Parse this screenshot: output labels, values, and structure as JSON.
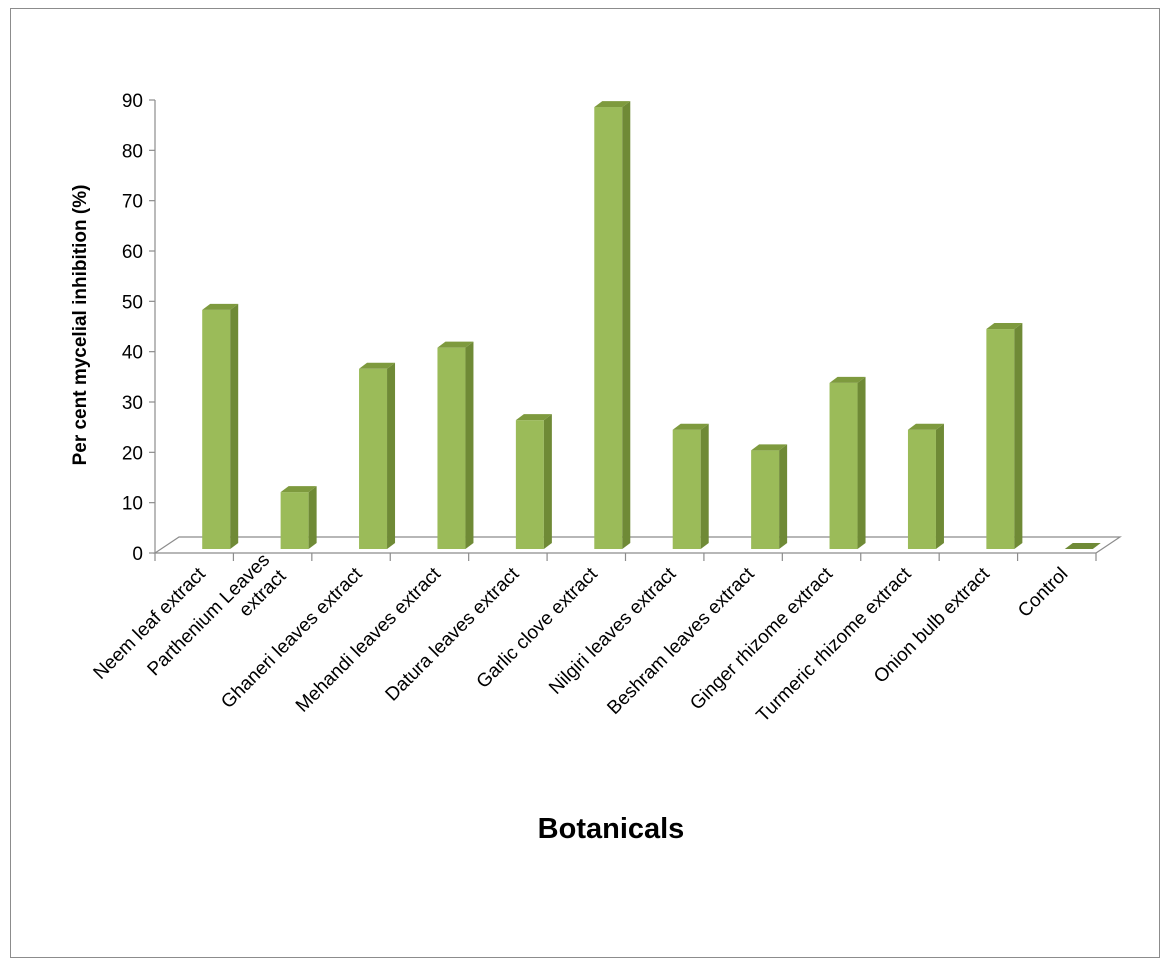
{
  "chart_data": {
    "type": "bar",
    "style": "3d-column",
    "categories": [
      [
        "Neem leaf extract"
      ],
      [
        "Parthenium Leaves",
        "extract"
      ],
      [
        "Ghaneri leaves extract"
      ],
      [
        "Mehandi leaves extract"
      ],
      [
        "Datura leaves extract"
      ],
      [
        "Garlic clove extract"
      ],
      [
        "Nilgiri leaves extract"
      ],
      [
        "Beshram leaves extract"
      ],
      [
        "Ginger rhizome extract"
      ],
      [
        "Turmeric rhizome extract"
      ],
      [
        "Onion bulb extract"
      ],
      [
        "Control"
      ]
    ],
    "values": [
      47.5,
      11.3,
      35.8,
      40.0,
      25.6,
      87.8,
      23.7,
      19.6,
      33.0,
      23.7,
      43.7,
      0
    ],
    "yticks": [
      "0",
      "10",
      "20",
      "30",
      "40",
      "50",
      "60",
      "70",
      "80",
      "90"
    ],
    "ylim": [
      0,
      90
    ],
    "ylabel": "Per cent mycelial inhibition (%)",
    "xlabel": "Botanicals",
    "grid": false,
    "legend": "none",
    "colors": {
      "front": "#9bbb59",
      "side": "#6f8a36",
      "top": "#7e9a3e",
      "axis": "#8c8c8c"
    }
  }
}
